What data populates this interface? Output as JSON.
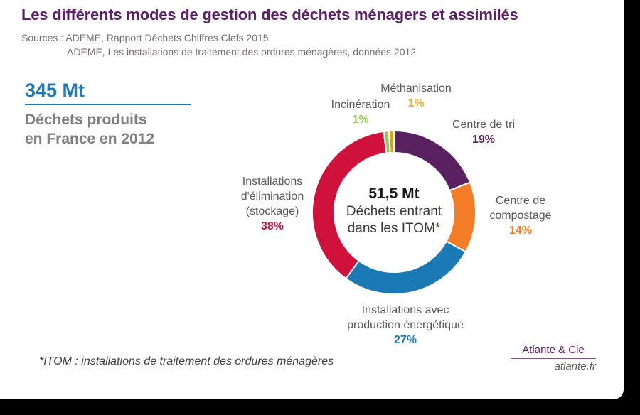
{
  "page": {
    "title": "Les différents modes de gestion des déchets ménagers et assimilés",
    "title_color": "#5B2066",
    "sources_line1": "Sources : ADEME, Rapport Déchets Chiffres Clefs 2015",
    "sources_line2": "ADEME, Les installations de traitement des ordures ménagères, données 2012",
    "footnote": "*ITOM : installations de traitement des ordures ménagères"
  },
  "stat": {
    "value": "345 Mt",
    "caption_line1": "Déchets produits",
    "caption_line2": "en France en 2012",
    "accent_color": "#1C79BE"
  },
  "branding": {
    "name": "Atlante & Cie",
    "site": "atlante.fr"
  },
  "chart_data": {
    "type": "pie",
    "subtype": "donut",
    "direction": "clockwise",
    "start_angle_deg": 0,
    "center": {
      "value": "51,5 Mt",
      "line1": "Déchets entrant",
      "line2": "dans les ITOM*"
    },
    "segments": [
      {
        "id": "centre-de-tri",
        "label": "Centre de tri",
        "pct": 19,
        "pct_text": "19%",
        "color": "#5A2161"
      },
      {
        "id": "centre-de-compostage",
        "label": "Centre de compostage",
        "pct": 14,
        "pct_text": "14%",
        "color": "#F57C26"
      },
      {
        "id": "installations-production-energetique",
        "label": "Installations avec production énergétique",
        "pct": 27,
        "pct_text": "27%",
        "color": "#1B79B5"
      },
      {
        "id": "installations-elimination-stockage",
        "label": "Installations d'élimination (stockage)",
        "pct": 38,
        "pct_text": "38%",
        "color": "#D0113B"
      },
      {
        "id": "incineration",
        "label": "Incinération",
        "pct": 1,
        "pct_text": "1%",
        "color": "#95CC4C"
      },
      {
        "id": "methanisation",
        "label": "Méthanisation",
        "pct": 1,
        "pct_text": "1%",
        "color": "#D7A31F",
        "label_color": "#F0B031"
      }
    ]
  }
}
